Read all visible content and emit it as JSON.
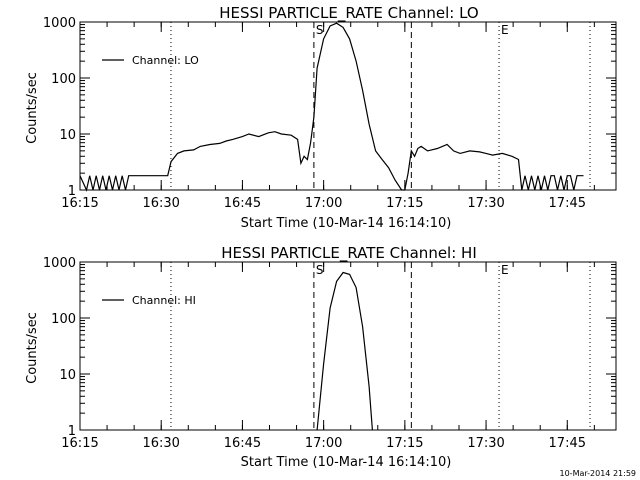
{
  "footer_timestamp": "10-Mar-2014 21:59",
  "chart_data": [
    {
      "type": "line",
      "title": "HESSI PARTICLE_RATE Channel: LO",
      "xlabel": "Start Time (10-Mar-14 16:14:10)",
      "ylabel": "Counts/sec",
      "xlim": [
        16.25,
        17.9
      ],
      "ylim": [
        1,
        1000
      ],
      "yscale": "log",
      "grid": false,
      "xticks": [
        "16:15",
        "16:30",
        "16:45",
        "17:00",
        "17:15",
        "17:30",
        "17:45"
      ],
      "xtick_values": [
        16.25,
        16.5,
        16.75,
        17.0,
        17.25,
        17.5,
        17.75
      ],
      "yticks": [
        "1",
        "10",
        "100",
        "1000"
      ],
      "ytick_values": [
        1,
        10,
        100,
        1000
      ],
      "legend": {
        "entry": "Channel: LO",
        "placement": "top-left"
      },
      "markers": [
        {
          "label": "",
          "x": 16.53,
          "style": "dotted"
        },
        {
          "label": "S",
          "x": 16.97,
          "style": "dashed"
        },
        {
          "label": "",
          "x": 17.27,
          "style": "dashed"
        },
        {
          "label": "E",
          "x": 17.54,
          "style": "dotted"
        },
        {
          "label": "",
          "x": 17.82,
          "style": "dotted"
        }
      ],
      "series": [
        {
          "name": "Channel: LO",
          "x": [
            16.25,
            16.27,
            16.28,
            16.29,
            16.3,
            16.31,
            16.32,
            16.33,
            16.34,
            16.35,
            16.36,
            16.37,
            16.38,
            16.39,
            16.4,
            16.41,
            16.42,
            16.43,
            16.44,
            16.45,
            16.48,
            16.5,
            16.52,
            16.53,
            16.55,
            16.57,
            16.6,
            16.62,
            16.65,
            16.68,
            16.7,
            16.72,
            16.75,
            16.77,
            16.8,
            16.83,
            16.85,
            16.87,
            16.9,
            16.92,
            16.93,
            16.94,
            16.95,
            16.96,
            16.97,
            16.98,
            17.0,
            17.02,
            17.04,
            17.06,
            17.08,
            17.1,
            17.12,
            17.14,
            17.16,
            17.18,
            17.2,
            17.22,
            17.24,
            17.25,
            17.26,
            17.27,
            17.28,
            17.29,
            17.3,
            17.32,
            17.35,
            17.38,
            17.4,
            17.42,
            17.45,
            17.48,
            17.5,
            17.52,
            17.55,
            17.58,
            17.6,
            17.61,
            17.62,
            17.63,
            17.64,
            17.65,
            17.66,
            17.67,
            17.68,
            17.69,
            17.7,
            17.71,
            17.72,
            17.73,
            17.74,
            17.75,
            17.76,
            17.77,
            17.78,
            17.8
          ],
          "y": [
            1.8,
            1.0,
            1.8,
            1.0,
            1.8,
            1.0,
            1.8,
            1.0,
            1.8,
            1.0,
            1.8,
            1.0,
            1.8,
            1.0,
            1.8,
            1.8,
            1.8,
            1.8,
            1.8,
            1.8,
            1.8,
            1.8,
            1.8,
            3.2,
            4.5,
            5.0,
            5.2,
            6.0,
            6.5,
            6.8,
            7.5,
            8.0,
            9.0,
            10.0,
            9.0,
            10.5,
            11.0,
            10.0,
            9.5,
            8.0,
            3.0,
            4.0,
            3.5,
            7.0,
            20,
            150,
            500,
            850,
            950,
            800,
            500,
            200,
            60,
            15,
            5.0,
            3.5,
            2.5,
            1.5,
            1.0,
            1.0,
            2.0,
            5.0,
            4.0,
            5.5,
            6.0,
            5.0,
            5.5,
            6.5,
            5.0,
            4.5,
            5.0,
            4.8,
            4.5,
            4.2,
            4.5,
            4.0,
            3.5,
            1.0,
            1.8,
            1.0,
            1.8,
            1.0,
            1.8,
            1.0,
            1.8,
            1.0,
            1.8,
            1.8,
            1.0,
            1.8,
            1.0,
            1.8,
            1.8,
            1.0,
            1.8,
            1.8
          ]
        }
      ]
    },
    {
      "type": "line",
      "title": "HESSI PARTICLE_RATE Channel: HI",
      "xlabel": "Start Time (10-Mar-14 16:14:10)",
      "ylabel": "Counts/sec",
      "xlim": [
        16.25,
        17.9
      ],
      "ylim": [
        1,
        1000
      ],
      "yscale": "log",
      "grid": false,
      "xticks": [
        "16:15",
        "16:30",
        "16:45",
        "17:00",
        "17:15",
        "17:30",
        "17:45"
      ],
      "xtick_values": [
        16.25,
        16.5,
        16.75,
        17.0,
        17.25,
        17.5,
        17.75
      ],
      "yticks": [
        "1",
        "10",
        "100",
        "1000"
      ],
      "ytick_values": [
        1,
        10,
        100,
        1000
      ],
      "legend": {
        "entry": "Channel: HI",
        "placement": "top-left"
      },
      "markers": [
        {
          "label": "",
          "x": 16.53,
          "style": "dotted"
        },
        {
          "label": "S",
          "x": 16.97,
          "style": "dashed"
        },
        {
          "label": "",
          "x": 17.27,
          "style": "dashed"
        },
        {
          "label": "E",
          "x": 17.54,
          "style": "dotted"
        },
        {
          "label": "",
          "x": 17.82,
          "style": "dotted"
        }
      ],
      "series": [
        {
          "name": "Channel: HI",
          "x": [
            16.98,
            17.0,
            17.02,
            17.04,
            17.06,
            17.08,
            17.1,
            17.12,
            17.14,
            17.15
          ],
          "y": [
            1.0,
            15,
            150,
            450,
            650,
            600,
            350,
            70,
            6,
            1.0
          ]
        }
      ]
    }
  ]
}
